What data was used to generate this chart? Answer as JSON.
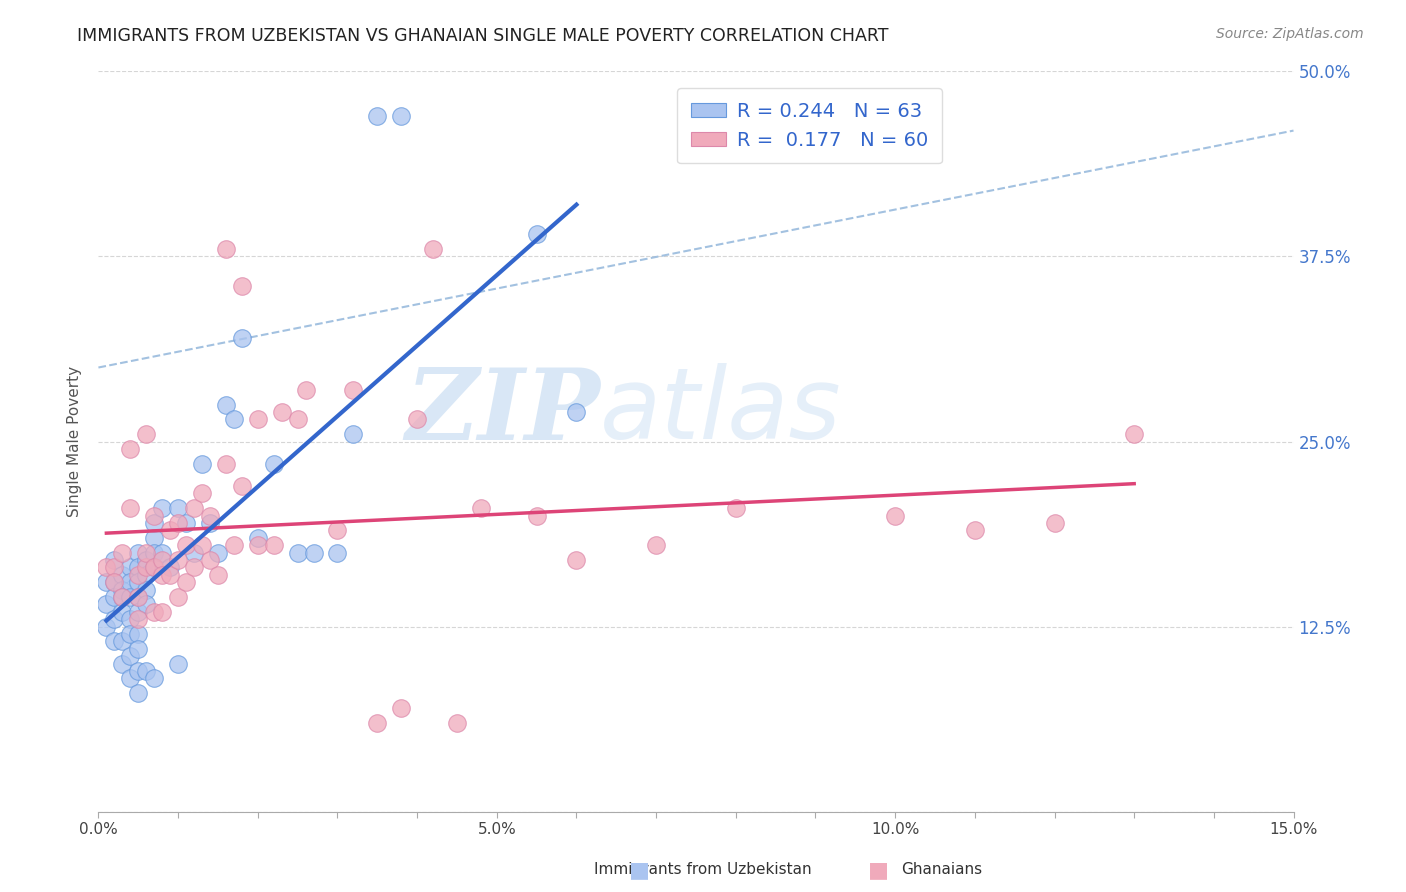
{
  "title": "IMMIGRANTS FROM UZBEKISTAN VS GHANAIAN SINGLE MALE POVERTY CORRELATION CHART",
  "source": "Source: ZipAtlas.com",
  "ylabel": "Single Male Poverty",
  "xlim": [
    0.0,
    0.15
  ],
  "ylim": [
    0.0,
    0.5
  ],
  "ytick_vals": [
    0.0,
    0.125,
    0.25,
    0.375,
    0.5
  ],
  "ytick_labels_right": [
    "",
    "12.5%",
    "25.0%",
    "37.5%",
    "50.0%"
  ],
  "legend_label1": "R = 0.244   N = 63",
  "legend_label2": "R =  0.177   N = 60",
  "color_uzbek": "#aac4f0",
  "color_ghana": "#f0aabb",
  "line_color_uzbek": "#3366cc",
  "line_color_ghana": "#dd4477",
  "line_color_dashed": "#99bbdd",
  "watermark_zip": "ZIP",
  "watermark_atlas": "atlas",
  "bottom_label1": "Immigrants from Uzbekistan",
  "bottom_label2": "Ghanaians",
  "uzbek_x": [
    0.001,
    0.001,
    0.001,
    0.002,
    0.002,
    0.002,
    0.002,
    0.002,
    0.003,
    0.003,
    0.003,
    0.003,
    0.003,
    0.003,
    0.004,
    0.004,
    0.004,
    0.004,
    0.004,
    0.004,
    0.004,
    0.005,
    0.005,
    0.005,
    0.005,
    0.005,
    0.005,
    0.005,
    0.005,
    0.005,
    0.006,
    0.006,
    0.006,
    0.006,
    0.006,
    0.007,
    0.007,
    0.007,
    0.007,
    0.007,
    0.008,
    0.008,
    0.009,
    0.01,
    0.01,
    0.011,
    0.012,
    0.013,
    0.014,
    0.015,
    0.016,
    0.017,
    0.018,
    0.02,
    0.022,
    0.025,
    0.027,
    0.03,
    0.032,
    0.035,
    0.038,
    0.055,
    0.06
  ],
  "uzbek_y": [
    0.155,
    0.14,
    0.125,
    0.17,
    0.155,
    0.145,
    0.13,
    0.115,
    0.16,
    0.15,
    0.145,
    0.135,
    0.115,
    0.1,
    0.165,
    0.155,
    0.145,
    0.13,
    0.12,
    0.105,
    0.09,
    0.175,
    0.165,
    0.155,
    0.145,
    0.135,
    0.12,
    0.11,
    0.095,
    0.08,
    0.17,
    0.16,
    0.15,
    0.14,
    0.095,
    0.195,
    0.185,
    0.175,
    0.165,
    0.09,
    0.205,
    0.175,
    0.165,
    0.205,
    0.1,
    0.195,
    0.175,
    0.235,
    0.195,
    0.175,
    0.275,
    0.265,
    0.32,
    0.185,
    0.235,
    0.175,
    0.175,
    0.175,
    0.255,
    0.47,
    0.47,
    0.39,
    0.27
  ],
  "ghana_x": [
    0.001,
    0.002,
    0.002,
    0.003,
    0.003,
    0.004,
    0.004,
    0.005,
    0.005,
    0.005,
    0.006,
    0.006,
    0.006,
    0.007,
    0.007,
    0.007,
    0.008,
    0.008,
    0.008,
    0.009,
    0.009,
    0.01,
    0.01,
    0.01,
    0.011,
    0.011,
    0.012,
    0.012,
    0.013,
    0.013,
    0.014,
    0.014,
    0.015,
    0.016,
    0.016,
    0.017,
    0.018,
    0.018,
    0.02,
    0.02,
    0.022,
    0.023,
    0.025,
    0.026,
    0.03,
    0.032,
    0.035,
    0.038,
    0.04,
    0.042,
    0.045,
    0.048,
    0.055,
    0.06,
    0.07,
    0.08,
    0.1,
    0.11,
    0.12,
    0.13
  ],
  "ghana_y": [
    0.165,
    0.165,
    0.155,
    0.175,
    0.145,
    0.245,
    0.205,
    0.16,
    0.145,
    0.13,
    0.165,
    0.255,
    0.175,
    0.2,
    0.165,
    0.135,
    0.17,
    0.16,
    0.135,
    0.19,
    0.16,
    0.195,
    0.17,
    0.145,
    0.18,
    0.155,
    0.205,
    0.165,
    0.215,
    0.18,
    0.2,
    0.17,
    0.16,
    0.38,
    0.235,
    0.18,
    0.22,
    0.355,
    0.18,
    0.265,
    0.18,
    0.27,
    0.265,
    0.285,
    0.19,
    0.285,
    0.06,
    0.07,
    0.265,
    0.38,
    0.06,
    0.205,
    0.2,
    0.17,
    0.18,
    0.205,
    0.2,
    0.19,
    0.195,
    0.255
  ],
  "dashed_line_x": [
    0.0,
    0.15
  ],
  "dashed_line_y": [
    0.3,
    0.46
  ]
}
